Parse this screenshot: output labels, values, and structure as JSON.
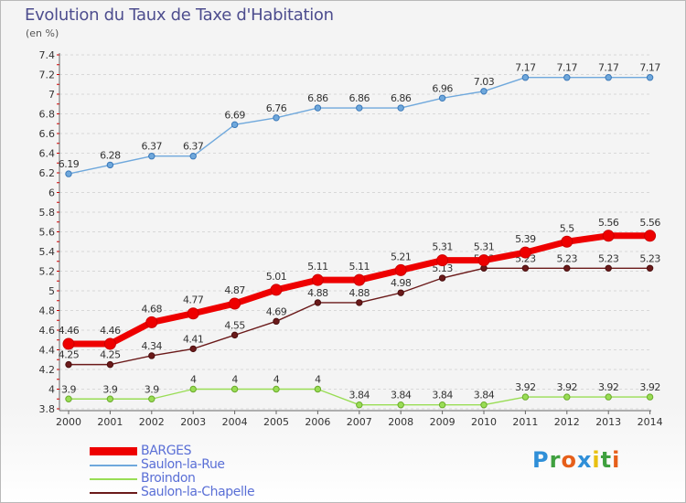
{
  "title": "Evolution du Taux de Taxe d'Habitation",
  "subtitle": "(en %)",
  "logo": {
    "text": "Proxiti",
    "colors": [
      "#2f8fd8",
      "#3fa03f",
      "#e65f1a",
      "#2f8fd8",
      "#e8c010",
      "#3fa03f",
      "#e65f1a"
    ]
  },
  "chart_data": {
    "type": "line",
    "title": "Evolution du Taux de Taxe d'Habitation",
    "ylabel": "(en %)",
    "xlabel": "",
    "ylim": [
      3.8,
      7.4
    ],
    "yticks": [
      "3.8",
      "4",
      "4.2",
      "4.4",
      "4.6",
      "4.8",
      "5",
      "5.2",
      "5.4",
      "5.6",
      "5.8",
      "6",
      "6.2",
      "6.4",
      "6.6",
      "6.8",
      "7",
      "7.2",
      "7.4"
    ],
    "grid": "horizontal",
    "legend": "bottom-left",
    "categories": [
      "2000",
      "2001",
      "2002",
      "2003",
      "2004",
      "2005",
      "2006",
      "2007",
      "2008",
      "2009",
      "2010",
      "2011",
      "2012",
      "2013",
      "2014"
    ],
    "series": [
      {
        "name": "BARGES",
        "color": "#ee0000",
        "values": [
          4.46,
          4.46,
          4.68,
          4.77,
          4.87,
          5.01,
          5.11,
          5.11,
          5.21,
          5.31,
          5.31,
          5.39,
          5.5,
          5.56,
          5.56
        ],
        "labels": [
          "4.46",
          "4.46",
          "4.68",
          "4.77",
          "4.87",
          "5.01",
          "5.11",
          "5.11",
          "5.21",
          "5.31",
          "5.31",
          "5.39",
          "5.5",
          "5.56",
          "5.56"
        ]
      },
      {
        "name": "Saulon-la-Rue",
        "color": "#6fa8dc",
        "values": [
          6.19,
          6.28,
          6.37,
          6.37,
          6.69,
          6.76,
          6.86,
          6.86,
          6.86,
          6.96,
          7.03,
          7.17,
          7.17,
          7.17,
          7.17
        ],
        "labels": [
          "6.19",
          "6.28",
          "6.37",
          "6.37",
          "6.69",
          "6.76",
          "6.86",
          "6.86",
          "6.86",
          "6.96",
          "7.03",
          "7.17",
          "7.17",
          "7.17",
          "7.17"
        ]
      },
      {
        "name": "Broindon",
        "color": "#99dd55",
        "values": [
          3.9,
          3.9,
          3.9,
          4,
          4,
          4,
          4,
          3.84,
          3.84,
          3.84,
          3.84,
          3.92,
          3.92,
          3.92,
          3.92
        ],
        "labels": [
          "3.9",
          "3.9",
          "3.9",
          "4",
          "4",
          "4",
          "4",
          "3.84",
          "3.84",
          "3.84",
          "3.84",
          "3.92",
          "3.92",
          "3.92",
          "3.92"
        ]
      },
      {
        "name": "Saulon-la-Chapelle",
        "color": "#6b1a1a",
        "values": [
          4.25,
          4.25,
          4.34,
          4.41,
          4.55,
          4.69,
          4.88,
          4.88,
          4.98,
          5.13,
          5.23,
          5.23,
          5.23,
          5.23,
          5.23
        ],
        "labels": [
          "4.25",
          "4.25",
          "4.34",
          "4.41",
          "4.55",
          "4.69",
          "4.88",
          "4.88",
          "4.98",
          "5.13",
          "5.23",
          "5.23",
          "5.23",
          "5.23",
          "5.23"
        ]
      }
    ]
  }
}
